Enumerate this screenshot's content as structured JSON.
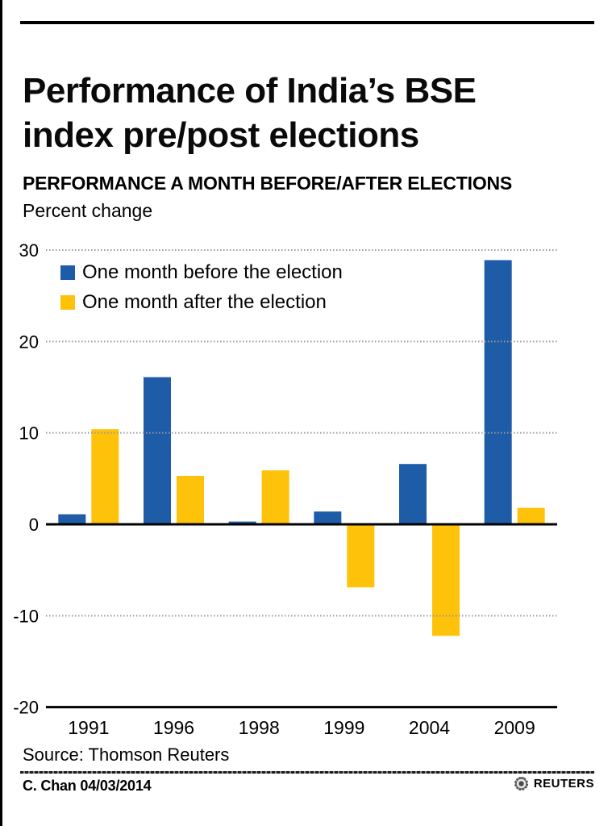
{
  "page": {
    "title_line1": "Performance of India’s BSE",
    "title_line2": "index pre/post elections",
    "kicker": "PERFORMANCE A MONTH BEFORE/AFTER ELECTIONS",
    "unit_label": "Percent change",
    "source": "Source: Thomson Reuters",
    "credit": "C. Chan 04/03/2014",
    "logo_text": "REUTERS"
  },
  "colors": {
    "before_blue": "#1E5CA8",
    "after_yellow": "#FFC20A",
    "grid_gray": "#999999",
    "axis_black": "#000000"
  },
  "chart_data": {
    "type": "bar",
    "title": "PERFORMANCE A MONTH BEFORE/AFTER ELECTIONS",
    "ylabel": "Percent change",
    "categories": [
      "1991",
      "1996",
      "1998",
      "1999",
      "2004",
      "2009"
    ],
    "series": [
      {
        "name": "One month before the election",
        "color": "#1E5CA8",
        "values": [
          1.1,
          16.1,
          0.3,
          1.4,
          6.6,
          28.9
        ]
      },
      {
        "name": "One month after the election",
        "color": "#FFC20A",
        "values": [
          10.4,
          5.3,
          5.9,
          -6.9,
          -12.2,
          1.8
        ]
      }
    ],
    "ylim": [
      -20,
      30
    ],
    "yticks": [
      30,
      20,
      10,
      0,
      -10,
      -20
    ],
    "grid": true,
    "legend_position": "top-left-inside"
  }
}
